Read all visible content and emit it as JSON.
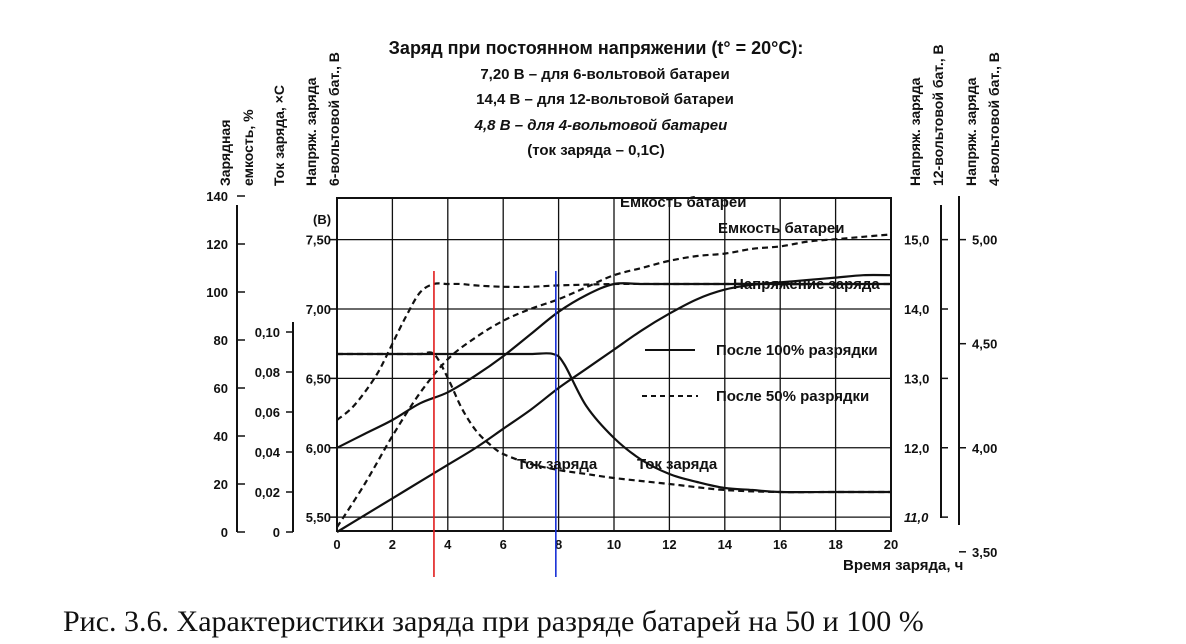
{
  "chart_data": {
    "type": "line",
    "header": {
      "title": "Заряд при постоянном напряжении (t° = 20°C):",
      "lines": [
        "7,20 В – для 6-вольтовой батареи",
        "14,4 В – для 12-вольтовой батареи",
        "4,8 В – для 4-вольтовой батареи",
        "(ток заряда – 0,1C)"
      ]
    },
    "caption": "Рис. 3.6. Характеристики заряда при разряде батарей на 50 и 100 %",
    "xlabel": "Время заряда, ч",
    "x_ticks": [
      "0",
      "2",
      "4",
      "6",
      "8",
      "10",
      "12",
      "14",
      "16",
      "18",
      "20"
    ],
    "xlim": [
      0,
      20
    ],
    "ylim_volt6": [
      5.4,
      7.8
    ],
    "inner_unit": "(В)",
    "axes": {
      "capacity": {
        "label": [
          "Зарядная",
          "емкость, %"
        ],
        "ticks": [
          "140",
          "120",
          "100",
          "80",
          "60",
          "40",
          "20",
          "0"
        ],
        "tick_values": [
          140,
          120,
          100,
          80,
          60,
          40,
          20,
          0
        ]
      },
      "current": {
        "label": [
          "Ток заряда, ×C"
        ],
        "ticks": [
          "0,10",
          "0,08",
          "0,06",
          "0,04",
          "0,02",
          "0"
        ],
        "tick_values": [
          0.1,
          0.08,
          0.06,
          0.04,
          0.02,
          0
        ]
      },
      "volt6": {
        "label": [
          "Напряж. заряда",
          "6-вольтовой бат., В"
        ],
        "ticks": [
          "7,50",
          "7,00",
          "6,50",
          "6,00",
          "5,50"
        ],
        "tick_values": [
          7.5,
          7.0,
          6.5,
          6.0,
          5.5
        ]
      },
      "volt12": {
        "label": [
          "Напряж. заряда",
          "12-вольтовой бат., В"
        ],
        "ticks": [
          "15,0",
          "14,0",
          "13,0",
          "12,0",
          "11,0"
        ],
        "tick_values": [
          15.0,
          14.0,
          13.0,
          12.0,
          11.0
        ]
      },
      "volt4": {
        "label": [
          "Напряж. заряда",
          "4-вольтовой бат., В"
        ],
        "ticks": [
          "5,00",
          "4,50",
          "4,00",
          "3,50"
        ],
        "tick_values": [
          5.0,
          4.5,
          4.0,
          3.5
        ]
      }
    },
    "annotations": {
      "capacity_dashed": "Емкость батареи",
      "capacity_solid": "Емкость батареи",
      "charge_voltage": "Напряжение заряда",
      "legend_solid": "После 100% разрядки",
      "legend_dashed": "После 50% разрядки",
      "current_dashed": "Ток заряда",
      "current_solid": "Ток заряда"
    },
    "legend": "right",
    "grid": true,
    "series": [
      {
        "name": "После 100% разрядки",
        "style": "solid",
        "kind": "capacity",
        "x": [
          0,
          1,
          2,
          3,
          4,
          5,
          6,
          7,
          8,
          9,
          10,
          11,
          12,
          13,
          14,
          15,
          16,
          17,
          18,
          19,
          20
        ],
        "y": [
          0,
          7,
          14,
          21,
          28,
          35,
          43,
          51,
          60,
          68,
          76,
          84,
          91,
          97,
          101,
          103,
          104,
          105,
          106,
          107,
          107
        ]
      },
      {
        "name": "После 50% разрядки",
        "style": "dashed",
        "kind": "capacity",
        "x": [
          0,
          1,
          2,
          3,
          4,
          5,
          6,
          7,
          8,
          9,
          10,
          11,
          12,
          13,
          14,
          15,
          16,
          17,
          18,
          19,
          20
        ],
        "y": [
          2,
          20,
          40,
          58,
          72,
          81,
          88,
          93,
          97,
          102,
          107,
          110,
          113,
          115,
          116,
          118,
          119,
          121,
          122,
          123,
          124
        ]
      },
      {
        "name": "После 100% разрядки",
        "style": "solid",
        "kind": "volt6",
        "x": [
          0,
          1,
          2,
          3,
          4,
          5,
          6,
          7,
          8,
          9,
          10,
          11,
          12,
          13,
          14,
          15,
          16,
          17,
          18,
          19,
          20
        ],
        "y": [
          6.0,
          6.1,
          6.2,
          6.32,
          6.4,
          6.52,
          6.66,
          6.82,
          6.98,
          7.1,
          7.18,
          7.18,
          7.18,
          7.18,
          7.18,
          7.18,
          7.18,
          7.18,
          7.18,
          7.18,
          7.18
        ]
      },
      {
        "name": "После 50% разрядки",
        "style": "dashed",
        "kind": "volt6",
        "x": [
          0,
          0.5,
          1,
          1.5,
          2,
          2.5,
          3,
          3.5,
          4,
          4.5,
          5,
          6,
          7,
          8,
          10,
          12,
          14,
          16,
          18,
          20
        ],
        "y": [
          6.2,
          6.28,
          6.4,
          6.55,
          6.75,
          6.95,
          7.12,
          7.18,
          7.18,
          7.18,
          7.17,
          7.16,
          7.16,
          7.17,
          7.18,
          7.18,
          7.18,
          7.18,
          7.18,
          7.18
        ]
      },
      {
        "name": "После 100% разрядки",
        "style": "solid",
        "kind": "current",
        "x": [
          0,
          1,
          2,
          3,
          4,
          5,
          6,
          7,
          7.8,
          8.2,
          9,
          10,
          11,
          12,
          13,
          14,
          15,
          16,
          18,
          20
        ],
        "y": [
          0.089,
          0.089,
          0.089,
          0.089,
          0.089,
          0.089,
          0.089,
          0.089,
          0.089,
          0.084,
          0.063,
          0.047,
          0.036,
          0.029,
          0.025,
          0.022,
          0.021,
          0.02,
          0.02,
          0.02
        ]
      },
      {
        "name": "После 50% разрядки",
        "style": "dashed",
        "kind": "current",
        "x": [
          0,
          1,
          2,
          3,
          3.5,
          4,
          4.5,
          5,
          5.5,
          6,
          7,
          8,
          9,
          10,
          12,
          14,
          16,
          18,
          20
        ],
        "y": [
          0.089,
          0.089,
          0.089,
          0.089,
          0.089,
          0.077,
          0.062,
          0.051,
          0.044,
          0.039,
          0.034,
          0.031,
          0.029,
          0.027,
          0.024,
          0.021,
          0.02,
          0.02,
          0.02
        ]
      }
    ],
    "markers": [
      {
        "name": "red-marker-line",
        "x": 3.5,
        "color": "#e11d1d"
      },
      {
        "name": "blue-marker-line",
        "x": 7.9,
        "color": "#1730d6"
      }
    ]
  }
}
